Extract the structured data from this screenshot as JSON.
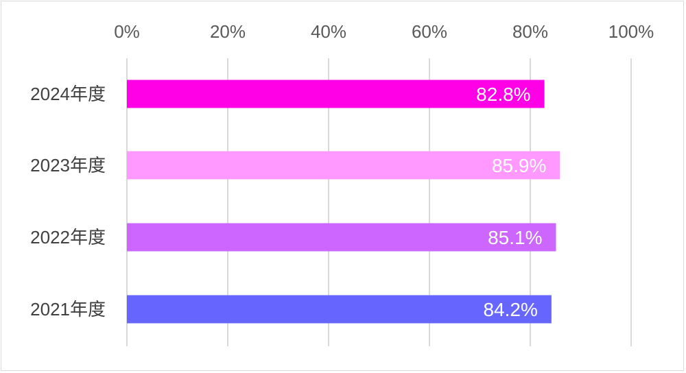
{
  "chart_data": {
    "type": "bar",
    "orientation": "horizontal",
    "categories": [
      "2024年度",
      "2023年度",
      "2022年度",
      "2021年度"
    ],
    "values": [
      82.8,
      85.9,
      85.1,
      84.2
    ],
    "value_labels": [
      "82.8%",
      "85.9%",
      "85.1%",
      "84.2%"
    ],
    "colors": [
      "#ff00e6",
      "#ff99ff",
      "#cc66ff",
      "#6666ff"
    ],
    "xlim": [
      0,
      100
    ],
    "x_ticks": [
      0,
      20,
      40,
      60,
      80,
      100
    ],
    "x_tick_labels": [
      "0%",
      "20%",
      "40%",
      "60%",
      "80%",
      "100%"
    ],
    "x_axis_position": "top",
    "grid": true,
    "legend": "none",
    "data_label_color": "#ffffff"
  }
}
